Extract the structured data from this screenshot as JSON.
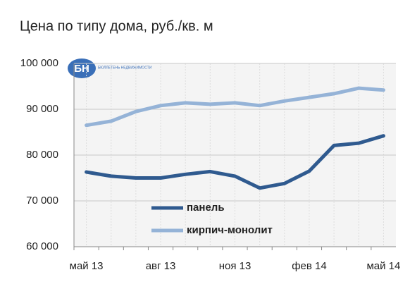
{
  "chart_data": {
    "type": "line",
    "title": "Цена по типу дома, руб./кв. м",
    "categories": [
      "май 13",
      null,
      null,
      "авг 13",
      null,
      null,
      "ноя 13",
      null,
      null,
      "фев 14",
      null,
      null,
      "май 14"
    ],
    "series": [
      {
        "name": "панель",
        "color": "#2f5a8f",
        "values": [
          76300,
          75400,
          75000,
          75000,
          75800,
          76400,
          75400,
          72800,
          73800,
          76500,
          82100,
          82600,
          84200
        ]
      },
      {
        "name": "кирпич-монолит",
        "color": "#95b3d7",
        "values": [
          86500,
          87400,
          89500,
          90800,
          91400,
          91100,
          91400,
          90800,
          91800,
          92600,
          93400,
          94600,
          94200
        ]
      }
    ],
    "ylim": [
      60000,
      100000
    ],
    "yticks": [
      {
        "value": 60000,
        "label": "60 000"
      },
      {
        "value": 70000,
        "label": "70 000"
      },
      {
        "value": 80000,
        "label": "80 000"
      },
      {
        "value": 90000,
        "label": "90 000"
      },
      {
        "value": 100000,
        "label": "100 000"
      }
    ],
    "grid": true,
    "legend": "bottom-left"
  },
  "watermark": {
    "mark": "БН",
    "text": "БЮЛЛЕТЕНЬ НЕДВИЖИМОСТИ"
  }
}
